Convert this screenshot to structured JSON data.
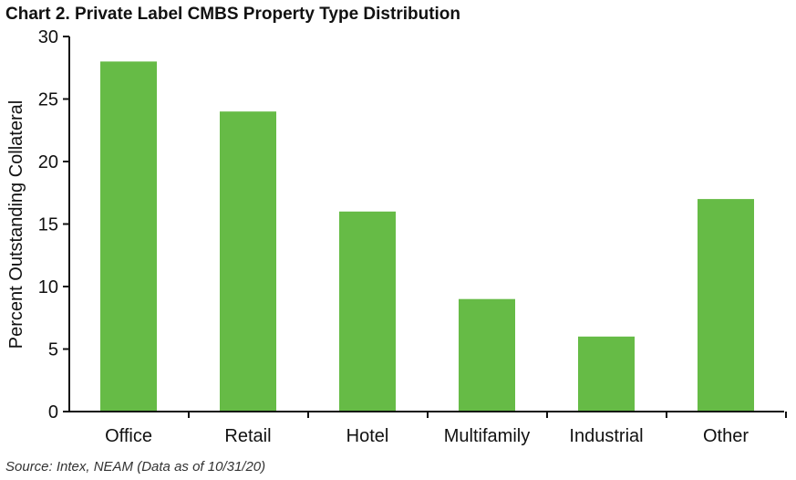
{
  "chart_data": {
    "type": "bar",
    "title": "Chart 2. Private Label CMBS Property Type Distribution",
    "xlabel": "",
    "ylabel": "Percent Outstanding Collateral",
    "categories": [
      "Office",
      "Retail",
      "Hotel",
      "Multifamily",
      "Industrial",
      "Other"
    ],
    "series": [
      {
        "name": "Percent Outstanding Collateral",
        "values": [
          28,
          24,
          16,
          9,
          6,
          17
        ]
      }
    ],
    "ylim": [
      0,
      30
    ],
    "yticks": [
      0,
      5,
      10,
      15,
      20,
      25,
      30
    ],
    "grid": false,
    "legend": "none",
    "bar_color": "#66bb46",
    "source": "Source: Intex, NEAM (Data as of 10/31/20)"
  }
}
